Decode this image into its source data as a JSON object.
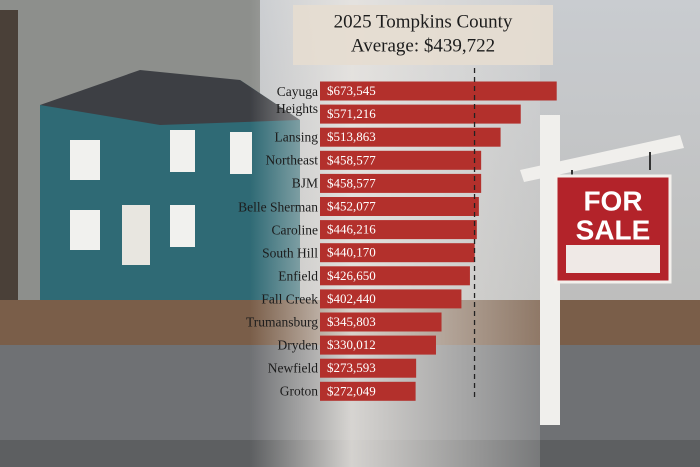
{
  "chart_data": {
    "type": "bar",
    "orientation": "horizontal",
    "title": "2025 Tompkins County",
    "subtitle": "Average: $439,722",
    "average": 439722,
    "categories": [
      "Cayuga\nHeights",
      null,
      "Lansing",
      "Northeast",
      "BJM",
      "Belle Sherman",
      "Caroline",
      "South Hill",
      "Enfield",
      "Fall Creek",
      "Trumansburg",
      "Dryden",
      "Newfield",
      "Groton"
    ],
    "values": [
      673545,
      571216,
      513863,
      458577,
      458577,
      452077,
      446216,
      440170,
      426650,
      402440,
      345803,
      330012,
      273593,
      272049
    ],
    "value_labels": [
      "$673,545",
      "$571,216",
      "$513,863",
      "$458,577",
      "$458,577",
      "$452,077",
      "$446,216",
      "$440,170",
      "$426,650",
      "$402,440",
      "$345,803",
      "$330,012",
      "$273,593",
      "$272,049"
    ],
    "color": "#b3302c",
    "xlim": [
      0,
      700000
    ]
  },
  "sign_text": [
    "FOR",
    "SALE"
  ]
}
